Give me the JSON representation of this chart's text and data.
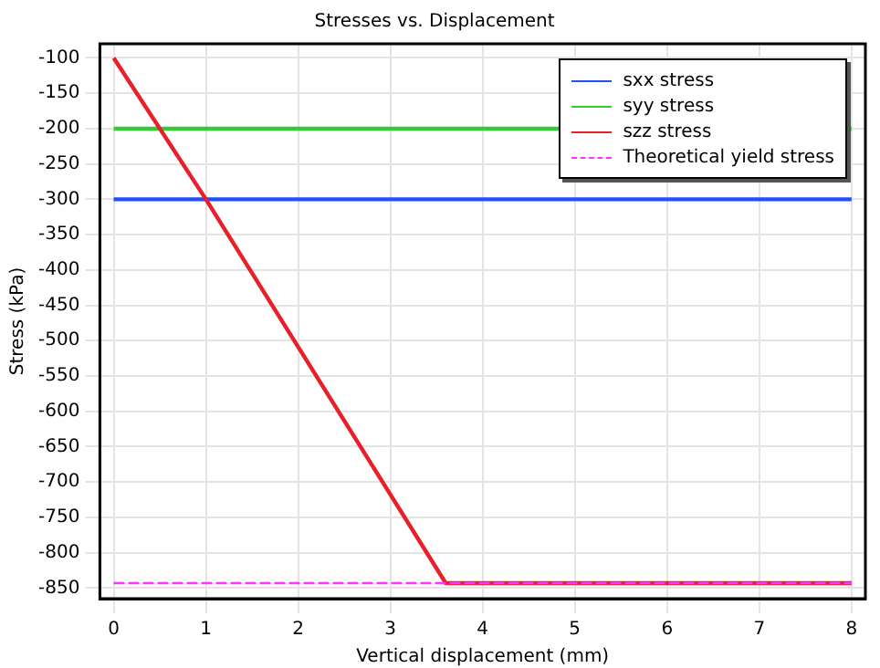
{
  "chart_data": {
    "type": "line",
    "title": "Stresses vs. Displacement",
    "xlabel": "Vertical displacement (mm)",
    "ylabel": "Stress (kPa)",
    "series": [
      {
        "name": "sxx stress",
        "color": "#1f4fff",
        "x": [
          0,
          8
        ],
        "values": [
          -300,
          -300
        ]
      },
      {
        "name": "syy stress",
        "color": "#33cc33",
        "x": [
          0,
          8
        ],
        "values": [
          -200,
          -200
        ]
      },
      {
        "name": "szz stress",
        "color": "#e8202a",
        "x": [
          0,
          1,
          3.6,
          8
        ],
        "values": [
          -100,
          -300,
          -843,
          -843
        ]
      },
      {
        "name": "Theoretical yield stress",
        "color": "#ff33ff",
        "line_style": "dashed",
        "x": [
          0,
          8
        ],
        "values": [
          -843,
          -843
        ]
      }
    ],
    "xlim": [
      -0.15,
      8.15
    ],
    "xticks": [
      0,
      1,
      2,
      3,
      4,
      5,
      6,
      7,
      8
    ],
    "ylim": [
      -865,
      -80
    ],
    "yticks": [
      -100,
      -150,
      -200,
      -250,
      -300,
      -350,
      -400,
      -450,
      -500,
      -550,
      -600,
      -650,
      -700,
      -750,
      -800,
      -850
    ],
    "grid": true,
    "legend": "top right",
    "marker": "none"
  }
}
